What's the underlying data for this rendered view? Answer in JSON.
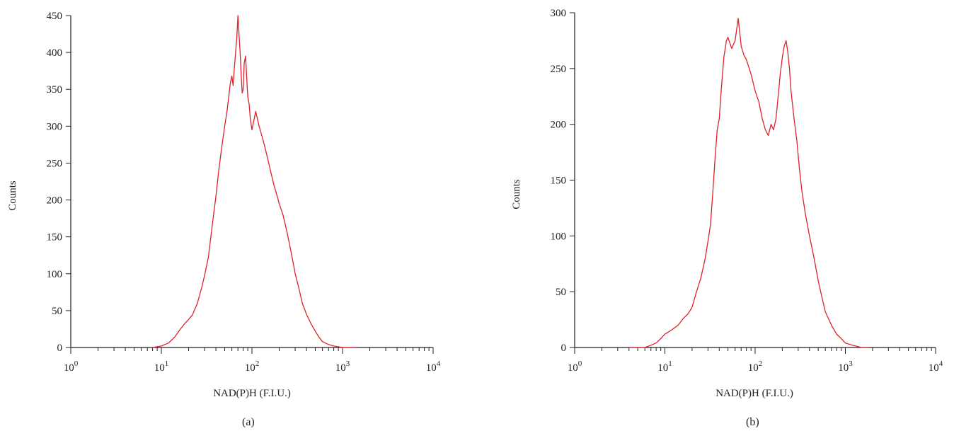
{
  "chart_data": [
    {
      "type": "line",
      "panel": "(a)",
      "xlabel": "NAD(P)H (F.I.U.)",
      "ylabel": "Counts",
      "xscale": "log",
      "xlim": [
        1,
        10000
      ],
      "ylim": [
        0,
        450
      ],
      "xticks": [
        {
          "base": "10",
          "exp": "0"
        },
        {
          "base": "10",
          "exp": "1"
        },
        {
          "base": "10",
          "exp": "2"
        },
        {
          "base": "10",
          "exp": "3"
        },
        {
          "base": "10",
          "exp": "4"
        }
      ],
      "yticks": [
        "0",
        "50",
        "100",
        "150",
        "200",
        "250",
        "300",
        "350",
        "400",
        "450"
      ],
      "grid": false,
      "line_color": "#e0202a",
      "series": [
        {
          "x": [
            8,
            10,
            12,
            14,
            16,
            18,
            20,
            22,
            25,
            28,
            30,
            33,
            36,
            40,
            43,
            46,
            50,
            53,
            56,
            58,
            60,
            62,
            64,
            66,
            68,
            70,
            72,
            74,
            76,
            78,
            80,
            82,
            85,
            88,
            90,
            93,
            96,
            100,
            110,
            120,
            130,
            140,
            150,
            160,
            175,
            190,
            200,
            220,
            240,
            260,
            280,
            300,
            330,
            360,
            400,
            450,
            500,
            550,
            600,
            700,
            800,
            900,
            1000,
            1200,
            1400
          ],
          "y": [
            0,
            2,
            6,
            14,
            24,
            32,
            38,
            44,
            60,
            82,
            98,
            122,
            160,
            205,
            240,
            268,
            300,
            320,
            345,
            360,
            368,
            355,
            380,
            400,
            420,
            450,
            425,
            400,
            370,
            345,
            350,
            385,
            395,
            360,
            340,
            330,
            310,
            295,
            320,
            300,
            285,
            270,
            255,
            240,
            220,
            205,
            195,
            180,
            160,
            140,
            120,
            100,
            80,
            60,
            45,
            32,
            22,
            14,
            8,
            4,
            2,
            1,
            0,
            0,
            0
          ]
        }
      ]
    },
    {
      "type": "line",
      "panel": "(b)",
      "xlabel": "NAD(P)H (F.I.U.)",
      "ylabel": "Counts",
      "xscale": "log",
      "xlim": [
        1,
        10000
      ],
      "ylim": [
        0,
        300
      ],
      "xticks": [
        {
          "base": "10",
          "exp": "0"
        },
        {
          "base": "10",
          "exp": "1"
        },
        {
          "base": "10",
          "exp": "2"
        },
        {
          "base": "10",
          "exp": "3"
        },
        {
          "base": "10",
          "exp": "4"
        }
      ],
      "yticks": [
        "0",
        "50",
        "100",
        "150",
        "200",
        "250",
        "300"
      ],
      "grid": false,
      "line_color": "#e0202a",
      "series": [
        {
          "x": [
            4,
            6,
            7,
            8,
            9,
            10,
            11,
            12,
            14,
            16,
            18,
            20,
            22,
            25,
            28,
            30,
            32,
            34,
            36,
            38,
            40,
            42,
            45,
            48,
            50,
            55,
            60,
            65,
            70,
            75,
            80,
            90,
            100,
            110,
            120,
            130,
            140,
            150,
            160,
            170,
            180,
            190,
            200,
            210,
            220,
            230,
            240,
            250,
            270,
            290,
            310,
            330,
            360,
            400,
            450,
            500,
            550,
            600,
            700,
            800,
            900,
            1000,
            1200,
            1500,
            1800
          ],
          "y": [
            0,
            0,
            2,
            4,
            8,
            12,
            14,
            16,
            20,
            26,
            30,
            36,
            48,
            62,
            80,
            95,
            110,
            140,
            170,
            195,
            205,
            230,
            260,
            275,
            278,
            268,
            275,
            295,
            270,
            262,
            258,
            245,
            230,
            220,
            205,
            195,
            190,
            200,
            195,
            205,
            225,
            245,
            260,
            270,
            275,
            265,
            250,
            230,
            205,
            185,
            160,
            140,
            120,
            100,
            80,
            60,
            45,
            32,
            20,
            12,
            8,
            4,
            2,
            0,
            0
          ]
        }
      ]
    }
  ],
  "panel_labels": [
    "(a)",
    "(b)"
  ]
}
